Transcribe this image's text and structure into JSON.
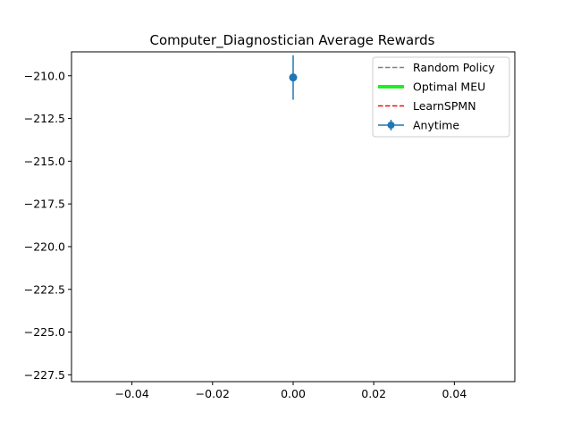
{
  "chart_data": {
    "type": "line",
    "title": "Computer_Diagnostician Average Rewards",
    "xlabel": "",
    "ylabel": "",
    "xlim": [
      -0.055,
      0.055
    ],
    "ylim": [
      -227.9,
      -208.6
    ],
    "x_ticks": [
      -0.04,
      -0.02,
      0.0,
      0.02,
      0.04
    ],
    "x_tick_labels": [
      "−0.04",
      "−0.02",
      "0.00",
      "0.02",
      "0.04"
    ],
    "y_ticks": [
      -210.0,
      -212.5,
      -215.0,
      -217.5,
      -220.0,
      -222.5,
      -225.0,
      -227.5
    ],
    "y_tick_labels": [
      "−210.0",
      "−212.5",
      "−215.0",
      "−217.5",
      "−220.0",
      "−222.5",
      "−225.0",
      "−227.5"
    ],
    "grid": false,
    "legend_position": "top-right",
    "series": [
      {
        "name": "Random Policy",
        "style": "dashed",
        "color": "#808080",
        "x": [],
        "y": []
      },
      {
        "name": "Optimal MEU",
        "style": "solid-thick",
        "color": "#22ee22",
        "x": [],
        "y": []
      },
      {
        "name": "LearnSPMN",
        "style": "dashed",
        "color": "#ee1111",
        "x": [],
        "y": []
      },
      {
        "name": "Anytime",
        "style": "errorbar",
        "color": "#1f77b4",
        "x": [
          0.0
        ],
        "y": [
          -210.1
        ],
        "yerr": [
          1.3
        ]
      }
    ]
  }
}
